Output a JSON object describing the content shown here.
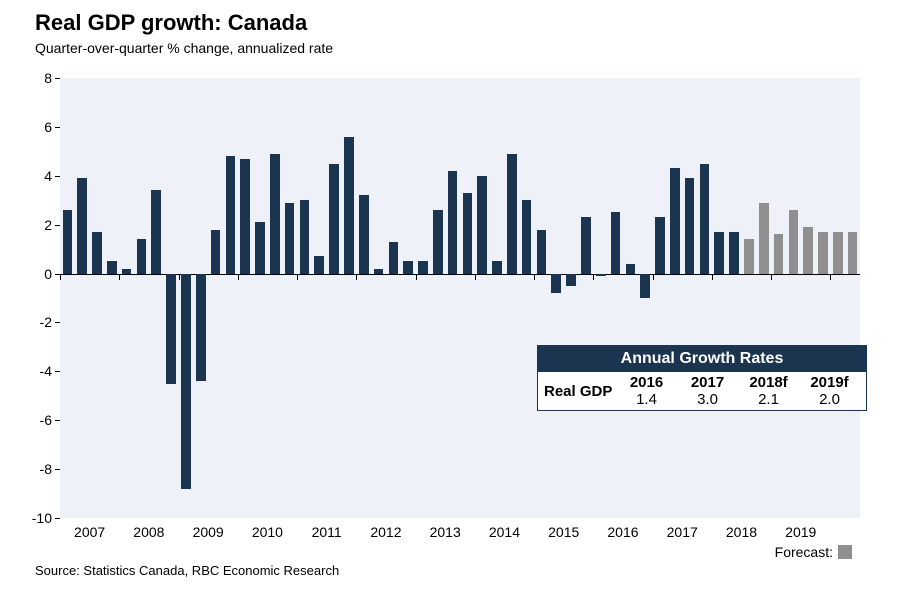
{
  "title": "Real GDP growth: Canada",
  "title_fontsize": 22,
  "subtitle": "Quarter-over-quarter % change, annualized rate",
  "subtitle_fontsize": 14,
  "source": "Source: Statistics Canada, RBC Economic Research",
  "forecast_label": "Forecast:",
  "chart": {
    "type": "bar",
    "background_color": "#eef2f8",
    "bar_color_actual": "#1b344f",
    "bar_color_forecast": "#8f8f8f",
    "ylim": [
      -10,
      8
    ],
    "ytick_step": 2,
    "yticks": [
      -10,
      -8,
      -6,
      -4,
      -2,
      0,
      2,
      4,
      6,
      8
    ],
    "x_years": [
      2007,
      2008,
      2009,
      2010,
      2011,
      2012,
      2013,
      2014,
      2015,
      2016,
      2017,
      2018,
      2019
    ],
    "bar_width_ratio": 0.65,
    "values": [
      2.6,
      3.9,
      1.7,
      0.5,
      0.2,
      1.4,
      3.4,
      -4.5,
      -8.8,
      -4.4,
      1.8,
      4.8,
      4.7,
      2.1,
      4.9,
      2.9,
      3.0,
      0.7,
      4.5,
      5.6,
      3.2,
      0.2,
      1.3,
      0.5,
      0.5,
      2.6,
      4.2,
      3.3,
      4.0,
      0.5,
      4.9,
      3.0,
      1.8,
      -0.8,
      -0.5,
      2.3,
      -0.1,
      2.5,
      0.4,
      -1.0,
      2.3,
      4.3,
      3.9,
      4.5,
      1.7,
      1.7,
      1.4,
      2.9,
      1.6,
      2.6,
      1.9,
      1.7,
      1.7,
      1.7
    ],
    "forecast_start_index": 46
  },
  "annual_table": {
    "header": "Annual Growth Rates",
    "header_bg": "#1b344f",
    "row_label": "Real GDP",
    "columns": [
      {
        "year": "2016",
        "value": "1.4"
      },
      {
        "year": "2017",
        "value": "3.0"
      },
      {
        "year": "2018f",
        "value": "2.1"
      },
      {
        "year": "2019f",
        "value": "2.0"
      }
    ]
  }
}
